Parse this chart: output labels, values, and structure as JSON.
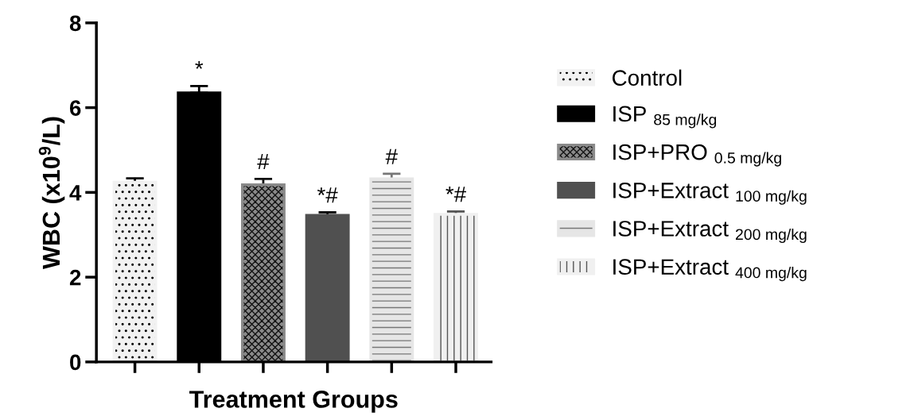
{
  "chart_data": {
    "type": "bar",
    "xlabel": "Treatment Groups",
    "ylabel": "WBC (x10$^{9}$/L)",
    "categories": [
      null,
      null,
      null,
      null,
      null,
      null
    ],
    "series": [
      {
        "name": "Control",
        "color": "#f2f2f2",
        "values": [
          4.24,
          null,
          null,
          null,
          null,
          null
        ],
        "errors": [
          [
            4.24,
            4.33
          ],
          null,
          null,
          null,
          null,
          null
        ]
      },
      {
        "name": "ISP $_{85 mg/kg}$",
        "color": "#000000",
        "values": [
          null,
          6.35,
          null,
          null,
          null,
          null
        ],
        "errors": [
          null,
          [
            6.35,
            6.51
          ],
          null,
          null,
          null,
          null
        ],
        "value_labels": [
          null,
          "*",
          null,
          null,
          null,
          null
        ]
      },
      {
        "name": "ISP+PRO $_{0.5 mg/kg}$",
        "color": "#8a8a8a",
        "values": [
          null,
          null,
          4.18,
          null,
          null,
          null
        ],
        "errors": [
          null,
          null,
          [
            4.18,
            4.32
          ],
          null,
          null,
          null
        ],
        "value_labels": [
          null,
          null,
          "#",
          null,
          null,
          null
        ]
      },
      {
        "name": "ISP+Extract $_{100 mg/kg}$",
        "color": "#505050",
        "values": [
          null,
          null,
          null,
          3.46,
          null,
          null
        ],
        "errors": [
          null,
          null,
          null,
          [
            3.46,
            3.53
          ],
          null,
          null
        ],
        "value_labels": [
          null,
          null,
          null,
          "*#",
          null,
          null
        ]
      },
      {
        "name": "ISP+Extract $_{200 mg/kg}$",
        "color": "#e6e6e6",
        "values": [
          null,
          null,
          null,
          null,
          4.32,
          null
        ],
        "errors": [
          null,
          null,
          null,
          null,
          [
            4.32,
            4.44
          ],
          null
        ],
        "value_labels": [
          null,
          null,
          null,
          null,
          "#",
          null
        ]
      },
      {
        "name": "ISP+Extract $_{400 mg/kg}$",
        "color": "#f0f0f0",
        "values": [
          null,
          null,
          null,
          null,
          null,
          3.48
        ],
        "errors": [
          null,
          null,
          null,
          null,
          null,
          [
            3.48,
            3.55
          ]
        ],
        "value_labels": [
          null,
          null,
          null,
          null,
          null,
          "*#"
        ]
      }
    ],
    "ylim": [
      0,
      8
    ],
    "yticks": [
      0,
      2,
      4,
      6,
      8
    ],
    "grid": false,
    "legend": "right"
  }
}
